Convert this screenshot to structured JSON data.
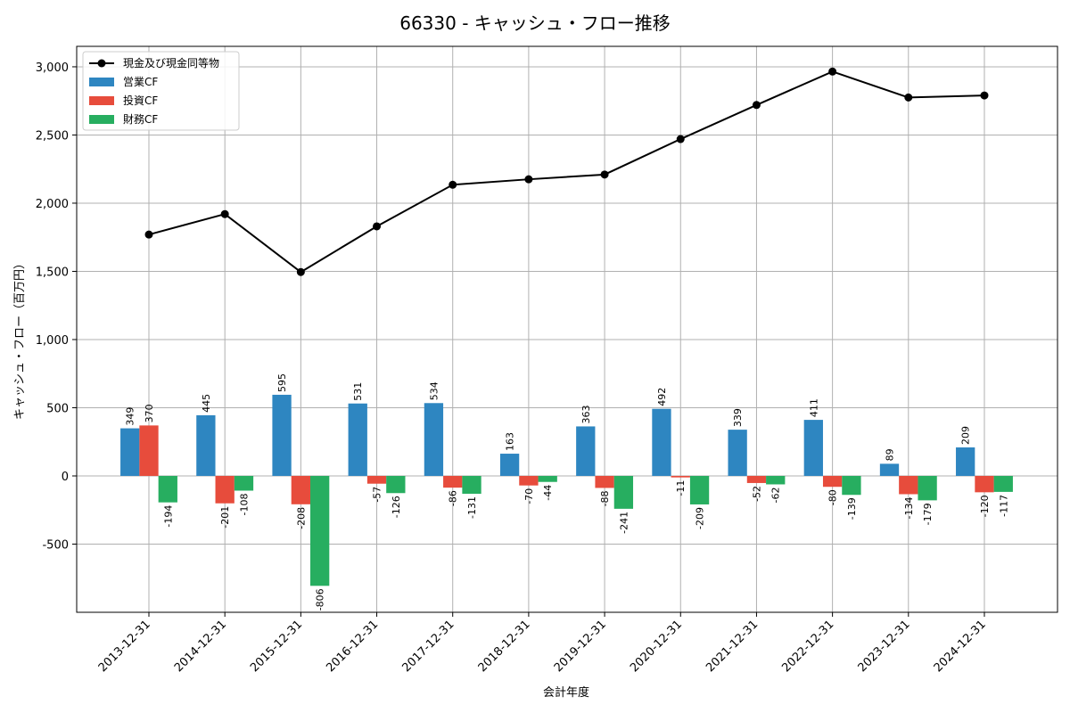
{
  "chart_data": {
    "type": "bar",
    "title": "66330 - キャッシュ・フロー推移",
    "xlabel": "会計年度",
    "ylabel": "キャッシュ・フロー（百万円）",
    "categories": [
      "2013-12-31",
      "2014-12-31",
      "2015-12-31",
      "2016-12-31",
      "2017-12-31",
      "2018-12-31",
      "2019-12-31",
      "2020-12-31",
      "2021-12-31",
      "2022-12-31",
      "2023-12-31",
      "2024-12-31"
    ],
    "series": [
      {
        "name": "営業CF",
        "type": "bar",
        "color": "#2e86c1",
        "values": [
          349,
          445,
          595,
          531,
          534,
          163,
          363,
          492,
          339,
          411,
          89,
          209
        ],
        "labels": [
          "349",
          "445",
          "595",
          "531",
          "534",
          "163",
          "363",
          "492",
          "339",
          "411",
          "89",
          "209"
        ]
      },
      {
        "name": "投資CF",
        "type": "bar",
        "color": "#e74c3c",
        "values": [
          370,
          -201,
          -208,
          -57,
          -86,
          -70,
          -88,
          -11,
          -52,
          -80,
          -134,
          -120
        ],
        "labels": [
          "370",
          "-201",
          "-208",
          "-57",
          "-86",
          "-70",
          "-88",
          "-11",
          "-52",
          "-80",
          "-134",
          "-120"
        ]
      },
      {
        "name": "財務CF",
        "type": "bar",
        "color": "#27ae60",
        "values": [
          -194,
          -108,
          -806,
          -126,
          -131,
          -44,
          -241,
          -209,
          -62,
          -139,
          -179,
          -117
        ],
        "labels": [
          "-194",
          "-108",
          "-806",
          "-126",
          "-131",
          "-44",
          "-241",
          "-209",
          "-62",
          "-139",
          "-179",
          "-117"
        ]
      },
      {
        "name": "現金及び現金同等物",
        "type": "line",
        "color": "#000000",
        "values": [
          1770,
          1920,
          1495,
          1830,
          2135,
          2175,
          2210,
          2470,
          2720,
          2965,
          2775,
          2790
        ]
      }
    ],
    "legend_order": [
      "現金及び現金同等物",
      "営業CF",
      "投資CF",
      "財務CF"
    ],
    "yticks": [
      -500,
      0,
      500,
      1000,
      1500,
      2000,
      2500,
      3000
    ],
    "ytick_labels": [
      "-500",
      "0",
      "500",
      "1,000",
      "1,500",
      "2,000",
      "2,500",
      "3,000"
    ],
    "ylim": [
      -1000,
      3150
    ],
    "grid": true,
    "legend_position": "top-left"
  }
}
